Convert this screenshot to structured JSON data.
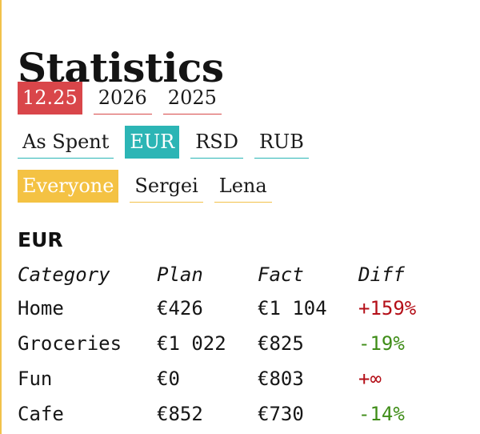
{
  "page": {
    "title": "Statistics"
  },
  "filters": {
    "dates": [
      {
        "label": "12.25",
        "active": true
      },
      {
        "label": "2026",
        "active": false
      },
      {
        "label": "2025",
        "active": false
      }
    ],
    "currencies": [
      {
        "label": "As Spent",
        "active": false
      },
      {
        "label": "EUR",
        "active": true
      },
      {
        "label": "RSD",
        "active": false
      },
      {
        "label": "RUB",
        "active": false
      }
    ],
    "people": [
      {
        "label": "Everyone",
        "active": true
      },
      {
        "label": "Sergei",
        "active": false
      },
      {
        "label": "Lena",
        "active": false
      }
    ]
  },
  "section": {
    "title": "EUR"
  },
  "table": {
    "headers": [
      "Category",
      "Plan",
      "Fact",
      "Diff"
    ],
    "rows": [
      {
        "category": "Home",
        "plan": "€426",
        "fact": "€1 104",
        "diff": "+159%",
        "trend": "up"
      },
      {
        "category": "Groceries",
        "plan": "€1 022",
        "fact": "€825",
        "diff": "-19%",
        "trend": "down"
      },
      {
        "category": "Fun",
        "plan": "€0",
        "fact": "€803",
        "diff": "+∞",
        "trend": "up"
      },
      {
        "category": "Cafe",
        "plan": "€852",
        "fact": "€730",
        "diff": "-14%",
        "trend": "down"
      }
    ]
  },
  "colors": {
    "date_accent": "#d9464a",
    "currency_accent": "#2cb5b5",
    "person_accent": "#f4c243",
    "positive_diff": "#b40f18",
    "negative_diff": "#3f8d18"
  }
}
